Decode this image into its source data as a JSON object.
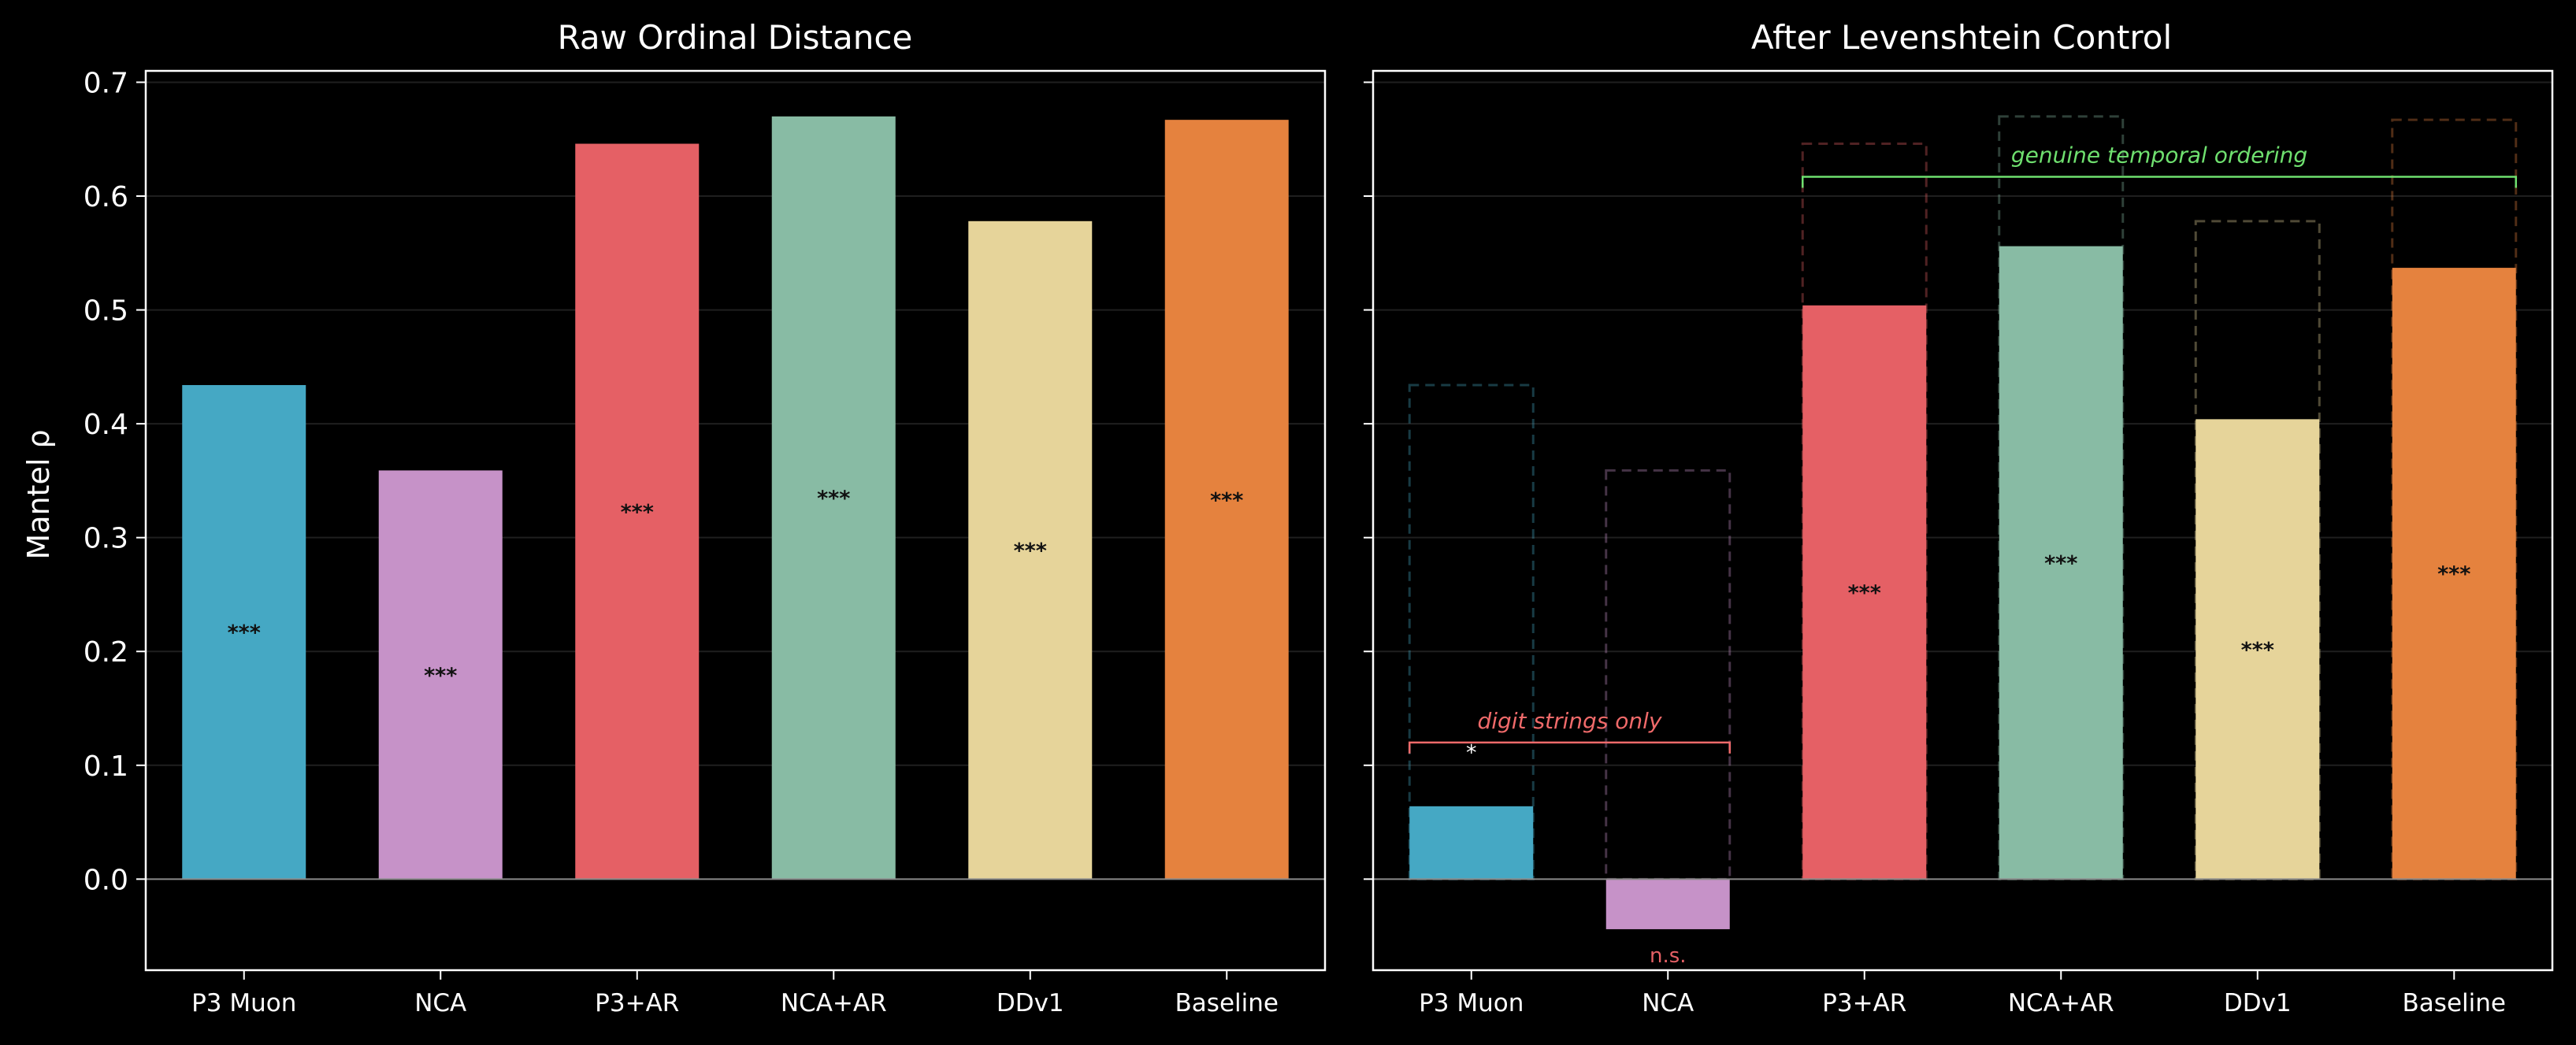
{
  "chart_data": {
    "type": "bar",
    "ylabel": "Mantel ρ",
    "ylim": [
      -0.08,
      0.71
    ],
    "yticks": [
      "0.0",
      "0.1",
      "0.2",
      "0.3",
      "0.4",
      "0.5",
      "0.6",
      "0.7"
    ],
    "categories": [
      "P3 Muon",
      "NCA",
      "P3+AR",
      "NCA+AR",
      "DDv1",
      "Baseline"
    ],
    "colors": [
      "#45a8c4",
      "#c692c8",
      "#e56065",
      "#88bba4",
      "#e6d49a",
      "#e5823e"
    ],
    "grid": true,
    "panels": [
      {
        "title": "Raw Ordinal Distance",
        "values": [
          0.434,
          0.359,
          0.646,
          0.67,
          0.578,
          0.667
        ],
        "significance": [
          "***",
          "***",
          "***",
          "***",
          "***",
          "***"
        ]
      },
      {
        "title": "After Levenshtein Control",
        "values": [
          0.064,
          -0.044,
          0.504,
          0.556,
          0.404,
          0.537
        ],
        "raw_reference": [
          0.434,
          0.359,
          0.646,
          0.67,
          0.578,
          0.667
        ],
        "significance": [
          "*",
          "n.s.",
          "***",
          "***",
          "***",
          "***"
        ],
        "annotations": [
          {
            "text": "digit strings only",
            "from": 0,
            "to": 1,
            "y": 0.12,
            "color": "#f06a6a"
          },
          {
            "text": "genuine temporal ordering",
            "from": 2,
            "to": 5,
            "y": 0.617,
            "color": "#6fe06f"
          }
        ]
      }
    ]
  }
}
